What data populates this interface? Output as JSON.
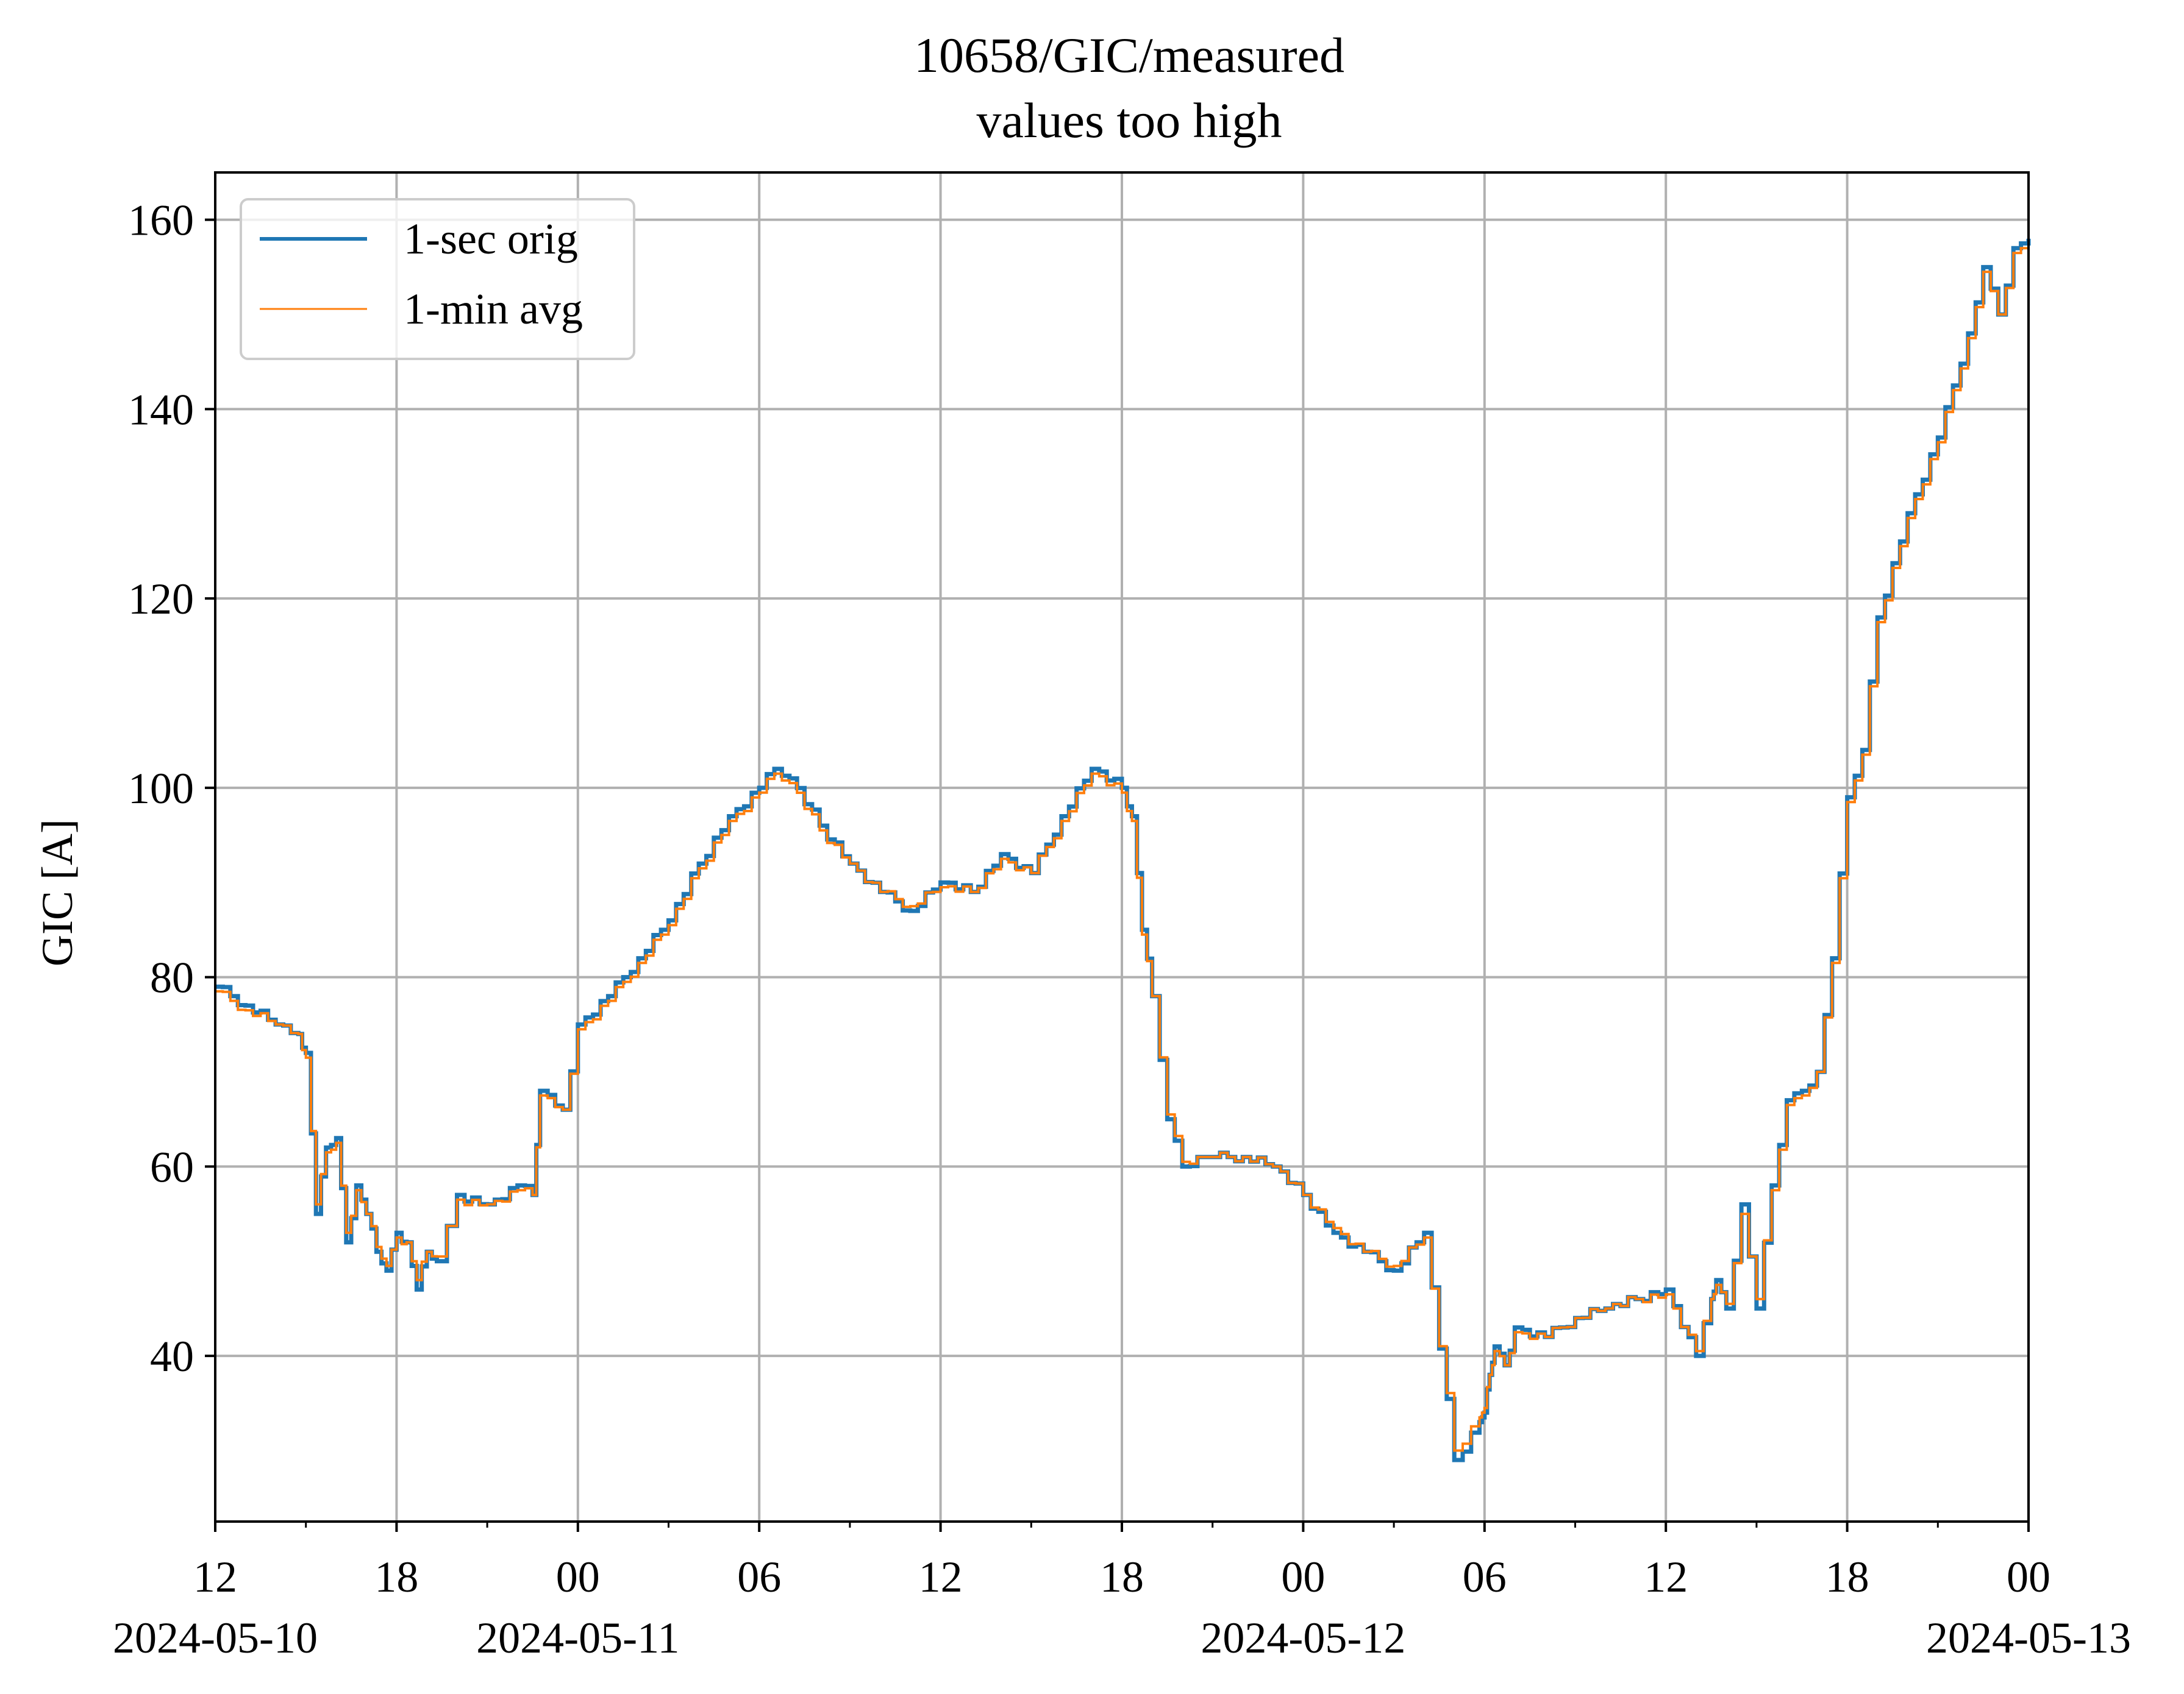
{
  "chart_data": {
    "type": "line",
    "title": "10658/GIC/measured",
    "subtitle": "values too high",
    "xlabel": "",
    "ylabel": "GIC [A]",
    "grid": true,
    "legend_position": "top-left",
    "x_range": [
      "2024-05-10 12:00",
      "2024-05-13 00:00"
    ],
    "ylim": [
      22.5,
      165
    ],
    "y_ticks": [
      40,
      60,
      80,
      100,
      120,
      140,
      160
    ],
    "x_ticks": [
      {
        "time": "2024-05-10 12:00",
        "label": "12",
        "date": "2024-05-10"
      },
      {
        "time": "2024-05-10 18:00",
        "label": "18",
        "date": ""
      },
      {
        "time": "2024-05-11 00:00",
        "label": "00",
        "date": "2024-05-11"
      },
      {
        "time": "2024-05-11 06:00",
        "label": "06",
        "date": ""
      },
      {
        "time": "2024-05-11 12:00",
        "label": "12",
        "date": ""
      },
      {
        "time": "2024-05-11 18:00",
        "label": "18",
        "date": ""
      },
      {
        "time": "2024-05-12 00:00",
        "label": "00",
        "date": "2024-05-12"
      },
      {
        "time": "2024-05-12 06:00",
        "label": "06",
        "date": ""
      },
      {
        "time": "2024-05-12 12:00",
        "label": "12",
        "date": ""
      },
      {
        "time": "2024-05-12 18:00",
        "label": "18",
        "date": ""
      },
      {
        "time": "2024-05-13 00:00",
        "label": "00",
        "date": "2024-05-13"
      }
    ],
    "series": [
      {
        "name": "1-sec orig",
        "color": "#1f77b4",
        "x": [
          "2024-05-10 12:00",
          "2024-05-10 13:00",
          "2024-05-10 14:00",
          "2024-05-10 14:45",
          "2024-05-10 15:00",
          "2024-05-10 15:20",
          "2024-05-10 15:40",
          "2024-05-10 16:00",
          "2024-05-10 16:20",
          "2024-05-10 16:40",
          "2024-05-10 17:00",
          "2024-05-10 17:20",
          "2024-05-10 17:40",
          "2024-05-10 18:00",
          "2024-05-10 18:20",
          "2024-05-10 18:40",
          "2024-05-10 19:00",
          "2024-05-10 19:20",
          "2024-05-10 20:00",
          "2024-05-10 21:00",
          "2024-05-10 22:00",
          "2024-05-10 22:30",
          "2024-05-10 22:45",
          "2024-05-10 23:30",
          "2024-05-11 00:00",
          "2024-05-11 01:00",
          "2024-05-11 02:00",
          "2024-05-11 03:00",
          "2024-05-11 04:00",
          "2024-05-11 05:00",
          "2024-05-11 06:00",
          "2024-05-11 06:30",
          "2024-05-11 07:00",
          "2024-05-11 08:00",
          "2024-05-11 09:00",
          "2024-05-11 10:00",
          "2024-05-11 11:00",
          "2024-05-11 12:00",
          "2024-05-11 13:00",
          "2024-05-11 14:00",
          "2024-05-11 15:00",
          "2024-05-11 16:00",
          "2024-05-11 17:00",
          "2024-05-11 18:00",
          "2024-05-11 18:20",
          "2024-05-11 18:40",
          "2024-05-11 19:00",
          "2024-05-11 19:30",
          "2024-05-11 20:00",
          "2024-05-11 20:30",
          "2024-05-11 21:00",
          "2024-05-11 22:00",
          "2024-05-11 23:00",
          "2024-05-12 00:00",
          "2024-05-12 01:00",
          "2024-05-12 02:00",
          "2024-05-12 03:00",
          "2024-05-12 04:00",
          "2024-05-12 05:00",
          "2024-05-12 05:50",
          "2024-05-12 06:00",
          "2024-05-12 06:10",
          "2024-05-12 06:20",
          "2024-05-12 06:40",
          "2024-05-12 07:00",
          "2024-05-12 08:00",
          "2024-05-12 09:00",
          "2024-05-12 10:00",
          "2024-05-12 11:00",
          "2024-05-12 12:00",
          "2024-05-12 13:00",
          "2024-05-12 13:30",
          "2024-05-12 13:40",
          "2024-05-12 14:00",
          "2024-05-12 14:30",
          "2024-05-12 15:00",
          "2024-05-12 15:30",
          "2024-05-12 16:00",
          "2024-05-12 16:30",
          "2024-05-12 17:00",
          "2024-05-12 17:30",
          "2024-05-12 18:00",
          "2024-05-12 18:30",
          "2024-05-12 19:00",
          "2024-05-12 20:00",
          "2024-05-12 21:00",
          "2024-05-12 22:00",
          "2024-05-12 22:30",
          "2024-05-12 23:00",
          "2024-05-12 23:30",
          "2024-05-13 00:00"
        ],
        "y": [
          79,
          77,
          75,
          74,
          72,
          55,
          62,
          63,
          52,
          58,
          55,
          51,
          49,
          53,
          52,
          47,
          51,
          50,
          57,
          56,
          58,
          57,
          68,
          66,
          75,
          78,
          82,
          86,
          92,
          97,
          100,
          102,
          101,
          96,
          92,
          89,
          87,
          90,
          89,
          93,
          91,
          97,
          102,
          100,
          97,
          85,
          78,
          65,
          60,
          61,
          61,
          61,
          60,
          57,
          53,
          51,
          49,
          53,
          29,
          33,
          34,
          38,
          41,
          39,
          43,
          42,
          44,
          45,
          46,
          47,
          40,
          46,
          48,
          45,
          56,
          45,
          58,
          67,
          68,
          70,
          82,
          99,
          104,
          118,
          129,
          137,
          148,
          155,
          150,
          157,
          158
        ]
      },
      {
        "name": "1-min avg",
        "color": "#ff7f0e",
        "x": [
          "2024-05-10 12:00",
          "2024-05-10 13:00",
          "2024-05-10 14:00",
          "2024-05-10 14:45",
          "2024-05-10 15:00",
          "2024-05-10 15:20",
          "2024-05-10 15:40",
          "2024-05-10 16:00",
          "2024-05-10 16:20",
          "2024-05-10 16:40",
          "2024-05-10 17:00",
          "2024-05-10 17:20",
          "2024-05-10 17:40",
          "2024-05-10 18:00",
          "2024-05-10 18:20",
          "2024-05-10 18:40",
          "2024-05-10 19:00",
          "2024-05-10 19:20",
          "2024-05-10 20:00",
          "2024-05-10 21:00",
          "2024-05-10 22:00",
          "2024-05-10 22:30",
          "2024-05-10 22:45",
          "2024-05-10 23:30",
          "2024-05-11 00:00",
          "2024-05-11 01:00",
          "2024-05-11 02:00",
          "2024-05-11 03:00",
          "2024-05-11 04:00",
          "2024-05-11 05:00",
          "2024-05-11 06:00",
          "2024-05-11 06:30",
          "2024-05-11 07:00",
          "2024-05-11 08:00",
          "2024-05-11 09:00",
          "2024-05-11 10:00",
          "2024-05-11 11:00",
          "2024-05-11 12:00",
          "2024-05-11 13:00",
          "2024-05-11 14:00",
          "2024-05-11 15:00",
          "2024-05-11 16:00",
          "2024-05-11 17:00",
          "2024-05-11 18:00",
          "2024-05-11 18:20",
          "2024-05-11 18:40",
          "2024-05-11 19:00",
          "2024-05-11 19:30",
          "2024-05-11 20:00",
          "2024-05-11 20:30",
          "2024-05-11 21:00",
          "2024-05-11 22:00",
          "2024-05-11 23:00",
          "2024-05-12 00:00",
          "2024-05-12 01:00",
          "2024-05-12 02:00",
          "2024-05-12 03:00",
          "2024-05-12 04:00",
          "2024-05-12 05:00",
          "2024-05-12 05:50",
          "2024-05-12 06:00",
          "2024-05-12 06:10",
          "2024-05-12 06:20",
          "2024-05-12 06:40",
          "2024-05-12 07:00",
          "2024-05-12 08:00",
          "2024-05-12 09:00",
          "2024-05-12 10:00",
          "2024-05-12 11:00",
          "2024-05-12 12:00",
          "2024-05-12 13:00",
          "2024-05-12 13:30",
          "2024-05-12 13:40",
          "2024-05-12 14:00",
          "2024-05-12 14:30",
          "2024-05-12 15:00",
          "2024-05-12 15:30",
          "2024-05-12 16:00",
          "2024-05-12 16:30",
          "2024-05-12 17:00",
          "2024-05-12 17:30",
          "2024-05-12 18:00",
          "2024-05-12 18:30",
          "2024-05-12 19:00",
          "2024-05-12 20:00",
          "2024-05-12 21:00",
          "2024-05-12 22:00",
          "2024-05-12 22:30",
          "2024-05-12 23:00",
          "2024-05-12 23:30",
          "2024-05-13 00:00"
        ],
        "y": [
          78.5,
          76.5,
          75,
          74,
          71.5,
          56,
          61.5,
          62.5,
          53,
          57.5,
          55,
          51.5,
          49.5,
          52.5,
          52,
          48,
          51,
          50.5,
          56.5,
          56,
          57.5,
          57,
          67.5,
          66,
          74.5,
          77.5,
          81.5,
          85.5,
          91.5,
          96.5,
          99.5,
          101.5,
          100.5,
          95.5,
          92,
          89,
          87.5,
          89.5,
          89,
          92.5,
          91,
          96.5,
          101.5,
          99.5,
          96.5,
          84.5,
          78,
          65.5,
          60.5,
          61,
          61,
          61,
          60,
          57,
          53.5,
          51,
          49.5,
          52.5,
          30,
          33.5,
          34.5,
          38,
          40.5,
          39,
          42.5,
          42,
          44,
          45,
          46,
          46.5,
          40.5,
          46,
          47.5,
          45.5,
          55,
          46,
          57.5,
          66.5,
          67.5,
          70,
          81.5,
          98.5,
          103.5,
          117.5,
          128.5,
          136.5,
          147.5,
          154.5,
          150,
          156.5,
          157.5
        ]
      }
    ]
  }
}
